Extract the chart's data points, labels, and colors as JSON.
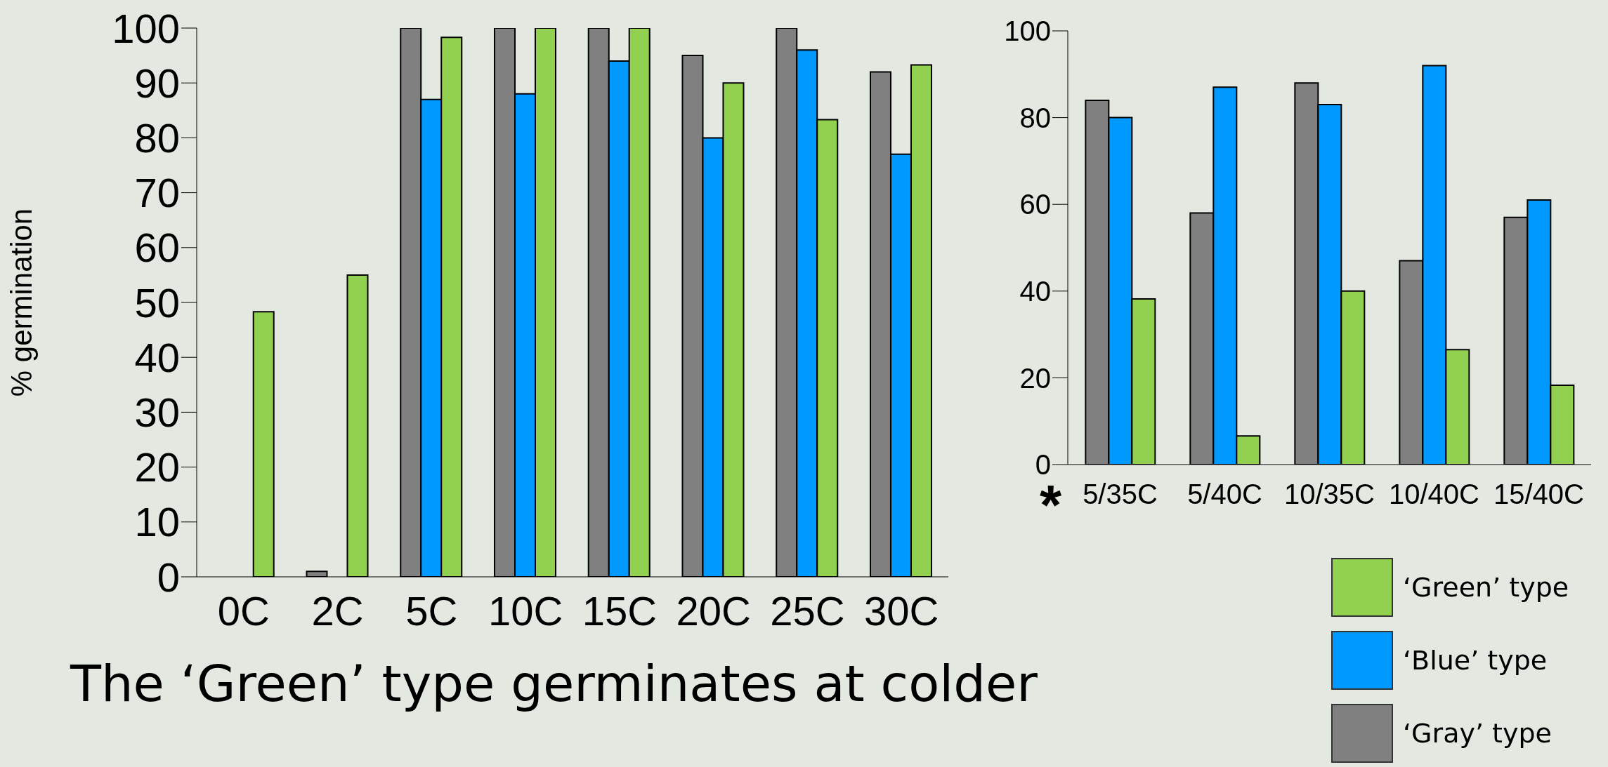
{
  "chart_data": [
    {
      "type": "bar",
      "ylabel": "% germination",
      "categories": [
        "0C",
        "2C",
        "5C",
        "10C",
        "15C",
        "20C",
        "25C",
        "30C"
      ],
      "series": [
        {
          "color": "#808080",
          "values": [
            null,
            1,
            100,
            100,
            100,
            95,
            100,
            92
          ]
        },
        {
          "color": "#0099ff",
          "values": [
            null,
            null,
            87,
            88,
            94,
            80,
            96,
            77
          ]
        },
        {
          "color": "#92d050",
          "values": [
            48.3,
            55,
            98.3,
            100,
            100,
            90,
            83.3,
            93.3
          ]
        }
      ],
      "ylim": [
        0,
        100
      ],
      "yticks": [
        0,
        10,
        20,
        30,
        40,
        50,
        60,
        70,
        80,
        90,
        100
      ],
      "grid": false,
      "legend": false,
      "annotations": [
        "The ‘Green’ type germinates at colder"
      ]
    },
    {
      "type": "bar",
      "categories": [
        "5/35C",
        "5/40C",
        "10/35C",
        "10/40C",
        "15/40C"
      ],
      "series": [
        {
          "name": "‘Gray’ type",
          "color": "#808080",
          "values": [
            84,
            58,
            88,
            47,
            57
          ]
        },
        {
          "name": "‘Blue’ type",
          "color": "#0099ff",
          "values": [
            80,
            87,
            83,
            92,
            61
          ]
        },
        {
          "name": "‘Green’ type",
          "color": "#92d050",
          "values": [
            38.2,
            6.6,
            40,
            26.5,
            18.3
          ]
        }
      ],
      "ylim": [
        0,
        100
      ],
      "yticks": [
        0,
        20,
        40,
        60,
        80,
        100
      ],
      "grid": false,
      "legend": "bottom right",
      "annotations": [
        "*"
      ]
    }
  ]
}
